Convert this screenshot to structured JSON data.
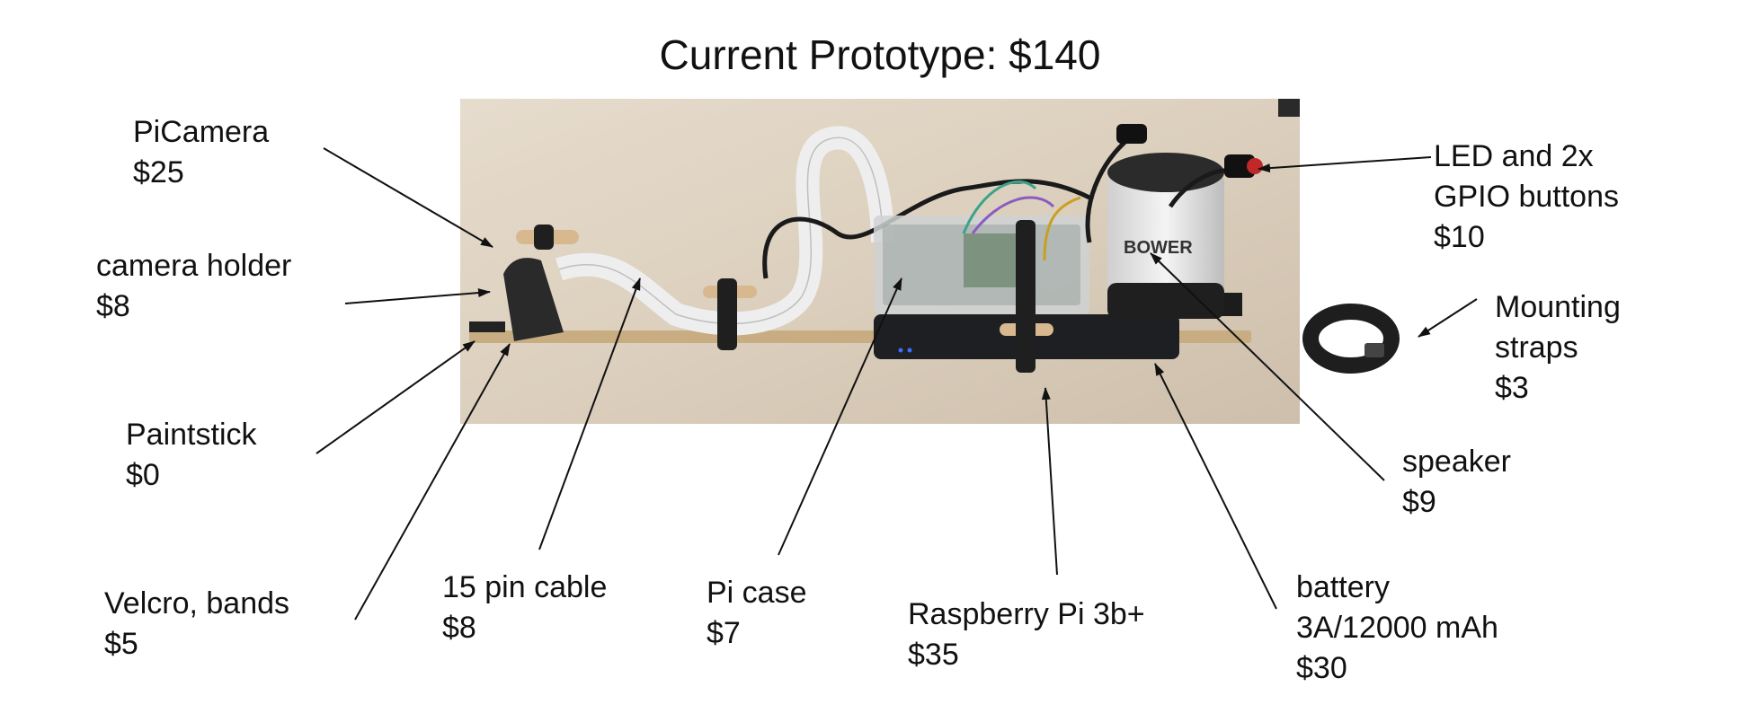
{
  "title": "Current Prototype: $140",
  "photo_brand_text": "BOWER",
  "annotations": [
    {
      "id": "picamera",
      "lines": [
        "PiCamera",
        "$25"
      ]
    },
    {
      "id": "camera-holder",
      "lines": [
        "camera holder",
        "$8"
      ]
    },
    {
      "id": "paintstick",
      "lines": [
        "Paintstick",
        "$0"
      ]
    },
    {
      "id": "velcro-bands",
      "lines": [
        "Velcro, bands",
        "$5"
      ]
    },
    {
      "id": "pin-cable",
      "lines": [
        "15 pin cable",
        "$8"
      ]
    },
    {
      "id": "pi-case",
      "lines": [
        "Pi case",
        "$7"
      ]
    },
    {
      "id": "raspberry-pi",
      "lines": [
        "Raspberry Pi 3b+",
        "$35"
      ]
    },
    {
      "id": "battery",
      "lines": [
        "battery",
        "3A/12000 mAh",
        "$30"
      ]
    },
    {
      "id": "speaker",
      "lines": [
        "speaker",
        "$9"
      ]
    },
    {
      "id": "mounting-straps",
      "lines": [
        "Mounting",
        "straps",
        "$3"
      ]
    },
    {
      "id": "led-buttons",
      "lines": [
        "LED and 2x",
        "GPIO buttons",
        "$10"
      ]
    }
  ]
}
